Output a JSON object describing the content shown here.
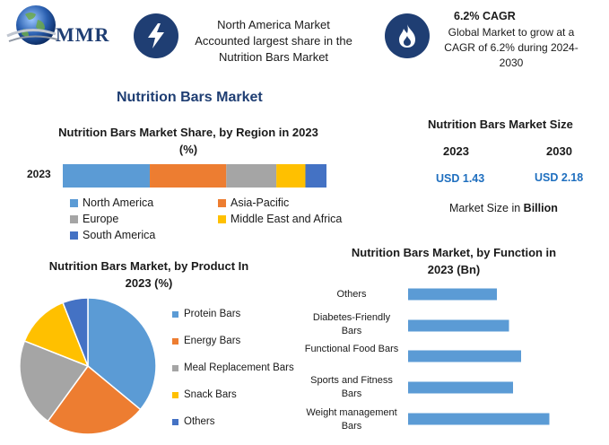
{
  "header": {
    "logo_text": "MMR",
    "region_note": "North America Market Accounted largest share in the Nutrition Bars Market",
    "cagr_title": "6.2% CAGR",
    "cagr_note": "Global Market to grow at a CAGR of 6.2% during 2024-2030",
    "icons": [
      "globe-icon",
      "lightning-bolt-icon",
      "flame-icon"
    ]
  },
  "main_title": "Nutrition Bars Market",
  "market_size": {
    "title": "Nutrition Bars Market Size",
    "year_a": "2023",
    "year_b": "2030",
    "value_a": "USD 1.43",
    "value_b": "USD 2.18",
    "note_prefix": "Market Size in ",
    "note_unit": "Billion"
  },
  "chart_data": [
    {
      "type": "bar",
      "orientation": "horizontal-stacked",
      "title": "Nutrition Bars Market Share, by Region in 2023 (%)",
      "categories": [
        "2023"
      ],
      "series": [
        {
          "name": "North America",
          "values": [
            33
          ],
          "color": "#5b9bd5"
        },
        {
          "name": "Asia-Pacific",
          "values": [
            29
          ],
          "color": "#ed7d31"
        },
        {
          "name": "Europe",
          "values": [
            19
          ],
          "color": "#a5a5a5"
        },
        {
          "name": "Middle East and Africa",
          "values": [
            11
          ],
          "color": "#ffc000"
        },
        {
          "name": "South America",
          "values": [
            8
          ],
          "color": "#4472c4"
        }
      ],
      "legend_position": "bottom"
    },
    {
      "type": "pie",
      "title": "Nutrition Bars Market, by Product In 2023 (%)",
      "labels": [
        "Protein Bars",
        "Energy Bars",
        "Meal Replacement Bars",
        "Snack Bars",
        "Others"
      ],
      "values": [
        36,
        24,
        21,
        13,
        6
      ],
      "colors": [
        "#5b9bd5",
        "#ed7d31",
        "#a5a5a5",
        "#ffc000",
        "#4472c4"
      ],
      "legend_position": "right"
    },
    {
      "type": "bar",
      "orientation": "horizontal",
      "title": "Nutrition Bars Market, by Function in 2023 (Bn)",
      "categories": [
        "Others",
        "Diabetes-Friendly Bars",
        "Functional Food Bars",
        "Sports and Fitness Bars",
        "Weight management Bars"
      ],
      "values": [
        0.22,
        0.25,
        0.28,
        0.26,
        0.35
      ],
      "xlim": [
        0,
        0.4
      ],
      "color": "#5b9bd5"
    }
  ]
}
